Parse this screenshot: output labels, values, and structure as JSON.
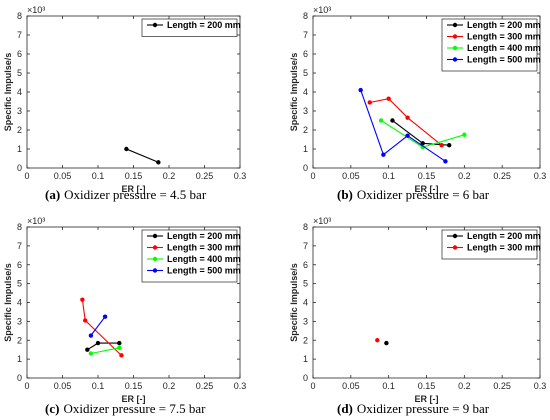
{
  "chart_data": [
    {
      "type": "line",
      "panel_label": "(a)",
      "caption_text": "Oxidizer pressure = 4.5 bar",
      "xlabel": "ER [-]",
      "ylabel": "Specific Impulse/s",
      "y_multiplier": "×10³",
      "xlim": [
        0,
        0.3
      ],
      "ylim": [
        0,
        8
      ],
      "xticks": [
        "0",
        "0.05",
        "0.1",
        "0.15",
        "0.2",
        "0.25",
        "0.3"
      ],
      "yticks": [
        "0",
        "1",
        "2",
        "3",
        "4",
        "5",
        "6",
        "7",
        "8"
      ],
      "legend_position": "top-right",
      "grid": false,
      "series": [
        {
          "name": "Length = 200 mm",
          "color": "#000000",
          "points": [
            [
              0.14,
              1.0
            ],
            [
              0.185,
              0.3
            ]
          ]
        }
      ]
    },
    {
      "type": "line",
      "panel_label": "(b)",
      "caption_text": "Oxidizer pressure = 6 bar",
      "xlabel": "ER [-]",
      "ylabel": "Specific Impulse/s",
      "y_multiplier": "×10³",
      "xlim": [
        0,
        0.3
      ],
      "ylim": [
        0,
        8
      ],
      "xticks": [
        "0",
        "0.05",
        "0.1",
        "0.15",
        "0.2",
        "0.25",
        "0.3"
      ],
      "yticks": [
        "0",
        "1",
        "2",
        "3",
        "4",
        "5",
        "6",
        "7",
        "8"
      ],
      "legend_position": "top-right",
      "grid": false,
      "series": [
        {
          "name": "Length = 200 mm",
          "color": "#000000",
          "points": [
            [
              0.105,
              2.5
            ],
            [
              0.145,
              1.3
            ],
            [
              0.18,
              1.2
            ]
          ]
        },
        {
          "name": "Length = 300 mm",
          "color": "#ff0000",
          "points": [
            [
              0.075,
              3.45
            ],
            [
              0.1,
              3.65
            ],
            [
              0.125,
              2.65
            ],
            [
              0.17,
              1.2
            ]
          ]
        },
        {
          "name": "Length = 400 mm",
          "color": "#00ff00",
          "points": [
            [
              0.09,
              2.5
            ],
            [
              0.145,
              1.1
            ],
            [
              0.2,
              1.75
            ]
          ]
        },
        {
          "name": "Length = 500 mm",
          "color": "#0000ff",
          "points": [
            [
              0.063,
              4.1
            ],
            [
              0.093,
              0.7
            ],
            [
              0.125,
              1.7
            ],
            [
              0.175,
              0.35
            ]
          ]
        }
      ]
    },
    {
      "type": "line",
      "panel_label": "(c)",
      "caption_text": "Oxidizer pressure = 7.5 bar",
      "xlabel": "ER [-]",
      "ylabel": "Specific Impulse/s",
      "y_multiplier": "×10³",
      "xlim": [
        0,
        0.3
      ],
      "ylim": [
        0,
        8
      ],
      "xticks": [
        "0",
        "0.05",
        "0.1",
        "0.15",
        "0.2",
        "0.25",
        "0.3"
      ],
      "yticks": [
        "0",
        "1",
        "2",
        "3",
        "4",
        "5",
        "6",
        "7",
        "8"
      ],
      "legend_position": "top-right",
      "grid": false,
      "series": [
        {
          "name": "Length = 200 mm",
          "color": "#000000",
          "points": [
            [
              0.085,
              1.5
            ],
            [
              0.1,
              1.85
            ],
            [
              0.13,
              1.85
            ]
          ]
        },
        {
          "name": "Length = 300 mm",
          "color": "#ff0000",
          "points": [
            [
              0.078,
              4.15
            ],
            [
              0.082,
              3.05
            ],
            [
              0.133,
              1.2
            ]
          ]
        },
        {
          "name": "Length = 400 mm",
          "color": "#00ff00",
          "points": [
            [
              0.09,
              1.3
            ],
            [
              0.13,
              1.6
            ]
          ]
        },
        {
          "name": "Length = 500 mm",
          "color": "#0000ff",
          "points": [
            [
              0.09,
              2.25
            ],
            [
              0.11,
              3.25
            ]
          ]
        }
      ]
    },
    {
      "type": "scatter",
      "panel_label": "(d)",
      "caption_text": "Oxidizer pressure = 9 bar",
      "xlabel": "ER [-]",
      "ylabel": "Specific Impulse/s",
      "y_multiplier": "×10³",
      "xlim": [
        0,
        0.3
      ],
      "ylim": [
        0,
        8
      ],
      "xticks": [
        "0",
        "0.05",
        "0.1",
        "0.15",
        "0.2",
        "0.25",
        "0.3"
      ],
      "yticks": [
        "0",
        "1",
        "2",
        "3",
        "4",
        "5",
        "6",
        "7",
        "8"
      ],
      "legend_position": "top-right",
      "grid": false,
      "series": [
        {
          "name": "Length = 200 mm",
          "color": "#000000",
          "points": [
            [
              0.097,
              1.85
            ]
          ]
        },
        {
          "name": "Length = 300 mm",
          "color": "#ff0000",
          "points": [
            [
              0.085,
              2.0
            ]
          ]
        }
      ]
    }
  ]
}
